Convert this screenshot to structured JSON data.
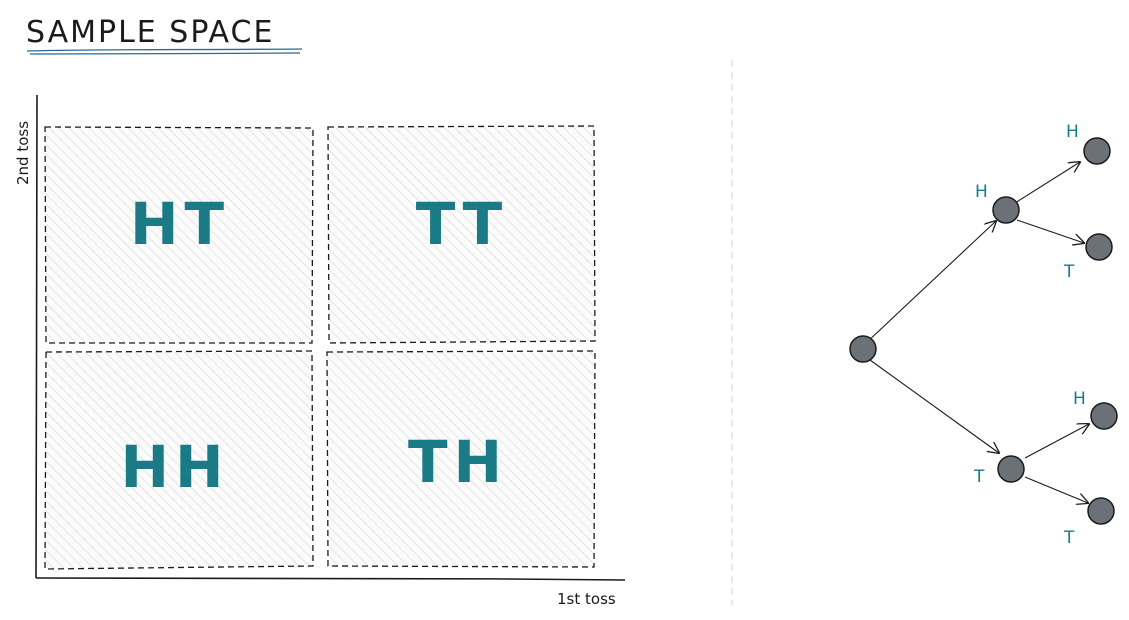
{
  "title": "SAMPLE SPACE",
  "grid": {
    "x_axis_label": "1st toss",
    "y_axis_label": "2nd toss",
    "cells": [
      {
        "id": "top-left",
        "label": "HT"
      },
      {
        "id": "top-right",
        "label": "TT"
      },
      {
        "id": "bottom-left",
        "label": "HH"
      },
      {
        "id": "bottom-right",
        "label": "TH"
      }
    ]
  },
  "tree": {
    "first_level": [
      {
        "id": "H",
        "label": "H"
      },
      {
        "id": "T",
        "label": "T"
      }
    ],
    "second_level": [
      {
        "id": "HH",
        "parent": "H",
        "label": "H"
      },
      {
        "id": "HT",
        "parent": "H",
        "label": "T"
      },
      {
        "id": "TH",
        "parent": "T",
        "label": "H"
      },
      {
        "id": "TT",
        "parent": "T",
        "label": "T"
      }
    ]
  },
  "colors": {
    "text": "#1b1b1b",
    "accent": "#1a7a86",
    "node_fill": "#6c7177",
    "hatch": "#cfd3d6",
    "divider": "#d9d9d9",
    "title_underline": "#2a6a9a"
  }
}
